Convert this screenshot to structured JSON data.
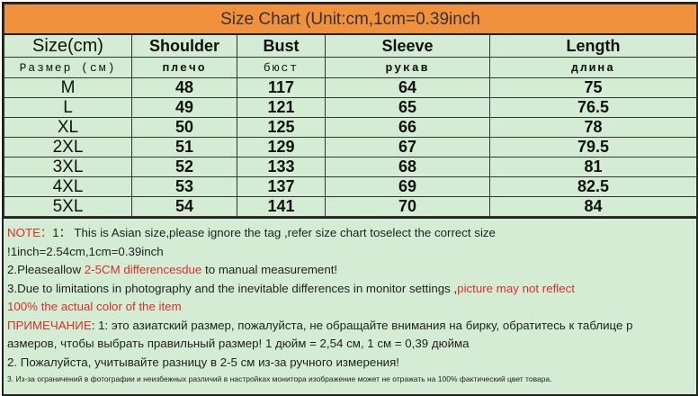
{
  "title": "Size Chart (Unit:cm,1cm=0.39inch",
  "headers": [
    "Size(cm)",
    "Shoulder",
    "Bust",
    "Sleeve",
    "Length"
  ],
  "headers_ru": [
    "Размер (см)",
    "плечо",
    "бюст",
    "рукав",
    "длина"
  ],
  "rows": [
    [
      "M",
      "48",
      "117",
      "64",
      "75"
    ],
    [
      "L",
      "49",
      "121",
      "65",
      "76.5"
    ],
    [
      "XL",
      "50",
      "125",
      "66",
      "78"
    ],
    [
      "2XL",
      "51",
      "129",
      "67",
      "79.5"
    ],
    [
      "3XL",
      "52",
      "133",
      "68",
      "81"
    ],
    [
      "4XL",
      "53",
      "137",
      "69",
      "82.5"
    ],
    [
      "5XL",
      "54",
      "141",
      "70",
      "84"
    ]
  ],
  "notes": {
    "n1_label": "NOTE：",
    "n1_text": "1：  This is Asian size,please ignore the tag ,refer size chart toselect the correct size",
    "n1_cont": "!1inch=2.54cm,1cm=0.39inch",
    "n2_a": "2.Pleaseallow ",
    "n2_red": "2-5CM differencesdue",
    "n2_b": " to manual measurement!",
    "n3_a": "3.Due to limitations in photography and the inevitable differences in monitor settings ,",
    "n3_red": "picture may not reflect",
    "n3_red2": "100% the actual color of the item",
    "ru1_label": "ПРИМЕЧАНИЕ",
    "ru1_text": ": 1: это азиатский размер, пожалуйста, не обращайте внимания на бирку, обратитесь к таблице р",
    "ru1_cont": "азмеров, чтобы выбрать правильный размер! 1 дюйм = 2,54 см, 1 см = 0,39 дюйма",
    "ru2": "2. Пожалуйста, учитывайте разницу в 2-5 см из-за ручного измерения!",
    "ru3": "3. Из-за ограничений в фотографии и неизбежных различий в настройках монитора изображение может не отражать на 100% фактический цвет товара."
  },
  "colors": {
    "header": "#f1913d",
    "background": "#d3ecd3",
    "accent_text": "#d6322a"
  }
}
